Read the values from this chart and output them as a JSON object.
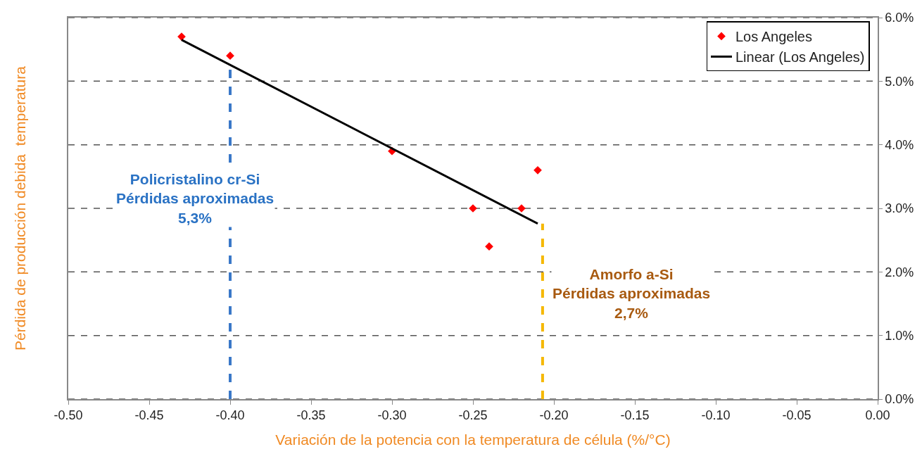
{
  "chart_data": {
    "type": "scatter",
    "xlabel": "Variación de la potencia con la temperatura de célula (%/°C)",
    "ylabel": "Pérdida de producción debida  temperatura",
    "x": [
      -0.43,
      -0.4,
      -0.3,
      -0.25,
      -0.24,
      -0.22,
      -0.21
    ],
    "series": [
      {
        "name": "Los Angeles",
        "color": "#ff0000",
        "values": [
          5.7,
          5.4,
          3.9,
          3.0,
          2.4,
          3.0,
          3.6
        ],
        "marker": "diamond"
      },
      {
        "name": "Linear (Los Angeles)",
        "type": "line",
        "color": "#000000",
        "x": [
          -0.43,
          -0.21
        ],
        "values": [
          5.65,
          2.76
        ],
        "marker": "none",
        "line_style": "solid"
      }
    ],
    "xlim": [
      -0.5,
      0
    ],
    "xticks": [
      {
        "value": -0.5,
        "label": "-0.50"
      },
      {
        "value": -0.45,
        "label": "-0.45"
      },
      {
        "value": -0.4,
        "label": "-0.40"
      },
      {
        "value": -0.35,
        "label": "-0.35"
      },
      {
        "value": -0.3,
        "label": "-0.30"
      },
      {
        "value": -0.25,
        "label": "-0.25"
      },
      {
        "value": -0.2,
        "label": "-0.20"
      },
      {
        "value": -0.15,
        "label": "-0.15"
      },
      {
        "value": -0.1,
        "label": "-0.10"
      },
      {
        "value": -0.05,
        "label": "-0.05"
      },
      {
        "value": 0,
        "label": "0.00"
      }
    ],
    "ylim": [
      0,
      6
    ],
    "yticks": [
      {
        "value": 0,
        "label": "0.0%"
      },
      {
        "value": 1,
        "label": "1.0%"
      },
      {
        "value": 2,
        "label": "2.0%"
      },
      {
        "value": 3,
        "label": "3.0%"
      },
      {
        "value": 4,
        "label": "4.0%"
      },
      {
        "value": 5,
        "label": "5.0%"
      },
      {
        "value": 6,
        "label": "6.0%"
      }
    ],
    "ref_lines": [
      {
        "axis": "x",
        "value": -0.4,
        "label": "Policristalino cr-Si\nPérdidas aproximadas\n5,3%",
        "color": "#3a78c8",
        "line_style": "dashed"
      },
      {
        "axis": "x",
        "value": -0.207,
        "label": "Amorfo a-Si\nPérdidas aproximadas\n2,7%",
        "color": "#f5b800",
        "line_style": "dashed"
      }
    ],
    "grid": "y",
    "legend": "top right"
  }
}
